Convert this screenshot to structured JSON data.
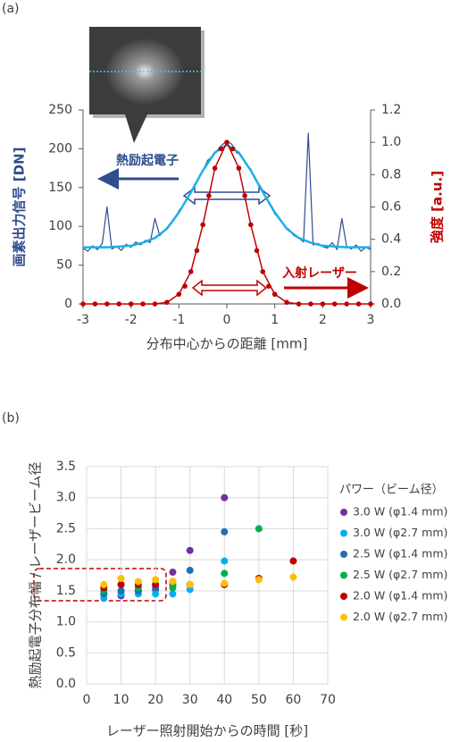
{
  "chart_data": [
    {
      "type": "line",
      "label": "(a)",
      "xlabel": "分布中心からの距離 [mm]",
      "ylabel": "画素出力信号 [DN]",
      "y2label": "強度 [a.u.]",
      "annotations": [
        "熱励起電子",
        "入射レーザー"
      ],
      "xlim": [
        -3,
        3
      ],
      "xticks": [
        -3,
        -2,
        -1,
        0,
        1,
        2,
        3
      ],
      "ylim": [
        0,
        250
      ],
      "yticks": [
        0,
        50,
        100,
        150,
        200,
        250
      ],
      "y2lim": [
        0,
        1.2
      ],
      "y2ticks": [
        {
          "value": 0,
          "label": "0.0"
        },
        0.2,
        0.4,
        0.6,
        0.8,
        {
          "value": 1,
          "label": "1.0"
        },
        1.2
      ],
      "series": [
        {
          "mode": "line",
          "color": "#2f4d8f",
          "width": 1.2,
          "x": [
            -3,
            -2.9,
            -2.8,
            -2.7,
            -2.6,
            -2.5,
            -2.4,
            -2.3,
            -2.2,
            -2.1,
            -2,
            -1.9,
            -1.8,
            -1.7,
            -1.6,
            -1.5,
            -1.4,
            -1.3,
            -1.2,
            -1.1,
            -1,
            -0.9,
            -0.8,
            -0.7,
            -0.6,
            -0.5,
            -0.4,
            -0.3,
            -0.2,
            -0.1,
            0,
            0.1,
            0.2,
            0.3,
            0.4,
            0.5,
            0.6,
            0.7,
            0.8,
            0.9,
            1,
            1.1,
            1.2,
            1.3,
            1.4,
            1.5,
            1.6,
            1.7,
            1.8,
            1.9,
            2,
            2.1,
            2.2,
            2.3,
            2.4,
            2.5,
            2.6,
            2.7,
            2.8,
            2.9,
            3
          ],
          "values": [
            72,
            68,
            75,
            70,
            78,
            125,
            71,
            74,
            69,
            77,
            73,
            80,
            76,
            82,
            79,
            110,
            88,
            95,
            102,
            108,
            120,
            128,
            138,
            150,
            160,
            172,
            185,
            190,
            198,
            205,
            210,
            206,
            195,
            192,
            180,
            174,
            160,
            152,
            140,
            128,
            116,
            110,
            100,
            96,
            88,
            85,
            80,
            220,
            76,
            78,
            74,
            72,
            79,
            70,
            110,
            74,
            71,
            76,
            68,
            73,
            70
          ]
        },
        {
          "mode": "line",
          "color": "#1ab0e8",
          "width": 2.5,
          "x": [
            -3,
            -2.75,
            -2.5,
            -2.25,
            -2,
            -1.75,
            -1.5,
            -1.25,
            -1,
            -0.75,
            -0.5,
            -0.25,
            0,
            0.25,
            0.5,
            0.75,
            1,
            1.25,
            1.5,
            1.75,
            2,
            2.25,
            2.5,
            2.75,
            3
          ],
          "values": [
            73,
            73,
            73,
            74,
            75,
            79,
            85,
            97,
            118,
            144,
            172,
            195,
            205,
            195,
            172,
            144,
            118,
            97,
            85,
            79,
            75,
            74,
            73,
            73,
            73
          ]
        },
        {
          "mode": "line",
          "axis": "y2",
          "color": "#c00000",
          "width": 1.5,
          "x": [
            -3,
            -2.5,
            -2,
            -1.5,
            -1.25,
            -1,
            -0.75,
            -0.5,
            -0.25,
            0,
            0.25,
            0.5,
            0.75,
            1,
            1.25,
            1.5,
            2,
            2.5,
            3
          ],
          "values": [
            0,
            0,
            0,
            0,
            0.01,
            0.06,
            0.2,
            0.49,
            0.84,
            1,
            0.84,
            0.49,
            0.2,
            0.06,
            0.01,
            0,
            0,
            0,
            0
          ]
        },
        {
          "mode": "markers",
          "axis": "y2",
          "color": "#c00000",
          "x": [
            -3,
            -2.75,
            -2.5,
            -2.25,
            -2,
            -1.75,
            -1.5,
            -1.25,
            -1,
            -0.875,
            -0.75,
            -0.625,
            -0.5,
            -0.375,
            -0.25,
            -0.125,
            0,
            0.125,
            0.25,
            0.375,
            0.5,
            0.625,
            0.75,
            0.875,
            1,
            1.25,
            1.5,
            1.75,
            2,
            2.25,
            2.5,
            2.75,
            3
          ],
          "values": [
            0,
            0,
            0,
            0,
            0,
            0,
            0,
            0.01,
            0.06,
            0.11,
            0.2,
            0.33,
            0.49,
            0.67,
            0.84,
            0.96,
            1,
            0.96,
            0.84,
            0.67,
            0.49,
            0.33,
            0.2,
            0.11,
            0.06,
            0.01,
            0,
            0,
            0,
            0,
            0,
            0,
            0
          ]
        }
      ]
    },
    {
      "type": "scatter",
      "label": "(b)",
      "xlabel": "レーザー照射開始からの時間 [秒]",
      "ylabel": "熱励起電子分布幅 / レーザービーム径",
      "legend_title": "パワー（ビーム径）",
      "xlim": [
        0,
        70
      ],
      "xticks": [
        0,
        10,
        20,
        30,
        40,
        50,
        60,
        70
      ],
      "ylim": [
        0,
        3.5
      ],
      "yticks": [
        {
          "value": 0,
          "label": "0.0"
        },
        0.5,
        {
          "value": 1,
          "label": "1.0"
        },
        1.5,
        {
          "value": 2,
          "label": "2.0"
        },
        2.5,
        {
          "value": 3,
          "label": "3.0"
        },
        3.5
      ],
      "grid": true,
      "series": [
        {
          "name": "3.0 W (φ1.4 mm)",
          "color": "#7030a0",
          "x": [
            5,
            10,
            15,
            20,
            25,
            30,
            40
          ],
          "values": [
            1.45,
            1.42,
            1.5,
            1.52,
            1.8,
            2.15,
            3.0
          ]
        },
        {
          "name": "3.0 W (φ2.7 mm)",
          "color": "#00b0f0",
          "x": [
            5,
            10,
            15,
            20,
            25,
            30,
            40
          ],
          "values": [
            1.38,
            1.45,
            1.45,
            1.45,
            1.45,
            1.52,
            1.98
          ]
        },
        {
          "name": "2.5 W (φ1.4 mm)",
          "color": "#1f6fb4",
          "x": [
            5,
            10,
            15,
            20,
            25,
            30,
            40
          ],
          "values": [
            1.45,
            1.5,
            1.5,
            1.55,
            1.6,
            1.83,
            2.45
          ]
        },
        {
          "name": "2.5 W (φ2.7 mm)",
          "color": "#00b050",
          "x": [
            5,
            10,
            15,
            20,
            25,
            30,
            40,
            50
          ],
          "values": [
            1.5,
            1.6,
            1.55,
            1.6,
            1.55,
            1.6,
            1.78,
            2.5
          ]
        },
        {
          "name": "2.0 W (φ1.4 mm)",
          "color": "#c00000",
          "x": [
            5,
            10,
            15,
            20,
            25,
            30,
            40,
            50,
            60
          ],
          "values": [
            1.55,
            1.6,
            1.6,
            1.6,
            1.65,
            1.6,
            1.6,
            1.7,
            1.98
          ]
        },
        {
          "name": "2.0 W (φ2.7 mm)",
          "color": "#ffc000",
          "x": [
            5,
            10,
            15,
            20,
            25,
            30,
            40,
            50,
            60
          ],
          "values": [
            1.6,
            1.7,
            1.65,
            1.68,
            1.65,
            1.6,
            1.62,
            1.68,
            1.72
          ]
        }
      ]
    }
  ]
}
